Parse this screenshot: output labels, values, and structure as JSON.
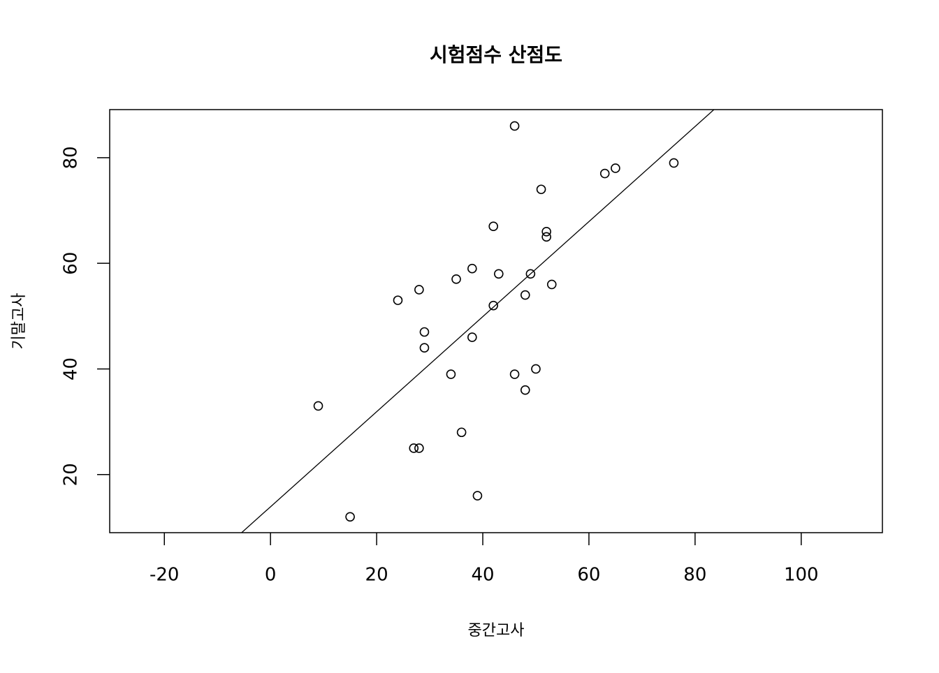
{
  "chart_data": {
    "type": "scatter",
    "title": "시험점수 산점도",
    "x_label": "중간고사",
    "y_label": "기말고사",
    "x": [
      46,
      63,
      65,
      76,
      51,
      42,
      52,
      52,
      38,
      43,
      49,
      35,
      53,
      28,
      48,
      24,
      42,
      29,
      38,
      29,
      50,
      34,
      46,
      48,
      9,
      36,
      27,
      28,
      39,
      15
    ],
    "y": [
      86,
      77,
      78,
      79,
      74,
      67,
      66,
      65,
      59,
      58,
      58,
      57,
      56,
      55,
      54,
      53,
      52,
      47,
      46,
      44,
      40,
      39,
      39,
      36,
      33,
      28,
      25,
      25,
      16,
      12
    ],
    "color": "#000000",
    "abline": {
      "intercept": 13.9,
      "slope": 0.9
    },
    "xlim": [
      -30.3,
      115.3
    ],
    "ylim": [
      9,
      89.1
    ],
    "xticks": [
      -20,
      0,
      20,
      40,
      60,
      80,
      100
    ],
    "yticks": [
      20,
      40,
      60,
      80
    ]
  }
}
